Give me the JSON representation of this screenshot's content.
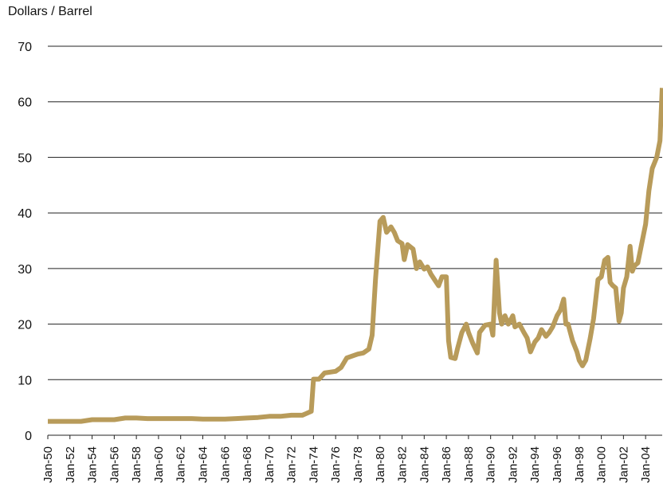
{
  "chart_data": {
    "type": "line",
    "ylabel": "Dollars / Barrel",
    "ylim": [
      0,
      70
    ],
    "yticks": [
      "0",
      "10",
      "20",
      "30",
      "40",
      "50",
      "60",
      "70"
    ],
    "grid": true,
    "color": "#B89B5A",
    "xticks": [
      "Jan-50",
      "Jan-52",
      "Jan-54",
      "Jan-56",
      "Jan-58",
      "Jan-60",
      "Jan-62",
      "Jan-64",
      "Jan-66",
      "Jan-68",
      "Jan-70",
      "Jan-72",
      "Jan-74",
      "Jan-76",
      "Jan-78",
      "Jan-80",
      "Jan-82",
      "Jan-84",
      "Jan-86",
      "Jan-88",
      "Jan-90",
      "Jan-92",
      "Jan-94",
      "Jan-96",
      "Jan-98",
      "Jan-00",
      "Jan-02",
      "Jan-04"
    ],
    "x_start_year": 1950,
    "x_end_year": 2005.5,
    "series": [
      {
        "name": "",
        "x": [
          1950,
          1952,
          1953,
          1954,
          1955,
          1956,
          1957,
          1958,
          1959,
          1960,
          1961,
          1962,
          1963,
          1964,
          1965,
          1966,
          1967,
          1968,
          1969,
          1970,
          1971,
          1972,
          1973,
          1973.8,
          1974,
          1974.5,
          1975,
          1976,
          1976.5,
          1977,
          1978,
          1978.5,
          1979,
          1979.3,
          1979.6,
          1980,
          1980.3,
          1980.6,
          1981,
          1981.3,
          1981.6,
          1982,
          1982.2,
          1982.5,
          1983,
          1983.3,
          1983.6,
          1984,
          1984.3,
          1984.6,
          1985,
          1985.3,
          1985.6,
          1986,
          1986.2,
          1986.4,
          1986.8,
          1987,
          1987.4,
          1987.8,
          1988,
          1988.4,
          1988.8,
          1989,
          1989.5,
          1990,
          1990.2,
          1990.5,
          1990.8,
          1991,
          1991.3,
          1991.6,
          1992,
          1992.2,
          1992.6,
          1993,
          1993.3,
          1993.6,
          1994,
          1994.3,
          1994.6,
          1995,
          1995.3,
          1995.6,
          1996,
          1996.3,
          1996.6,
          1996.8,
          1997,
          1997.4,
          1997.8,
          1998,
          1998.3,
          1998.6,
          1999,
          1999.3,
          1999.7,
          2000,
          2000.3,
          2000.6,
          2000.8,
          2001,
          2001.3,
          2001.6,
          2001.8,
          2002,
          2002.3,
          2002.6,
          2002.8,
          2003,
          2003.3,
          2003.6,
          2004,
          2004.3,
          2004.6,
          2005,
          2005.3,
          2005.5
        ],
        "y": [
          2.5,
          2.5,
          2.5,
          2.8,
          2.8,
          2.8,
          3.1,
          3.1,
          3.0,
          3.0,
          3.0,
          3.0,
          3.0,
          2.9,
          2.9,
          2.9,
          3.0,
          3.1,
          3.2,
          3.4,
          3.4,
          3.6,
          3.6,
          4.3,
          10.1,
          10.1,
          11.2,
          11.5,
          12.2,
          13.9,
          14.6,
          14.8,
          15.5,
          18,
          28,
          38.5,
          39.2,
          36.5,
          37.5,
          36.5,
          35,
          34.5,
          31.6,
          34.3,
          33.5,
          30.0,
          31.2,
          29.9,
          30.3,
          29.0,
          27.8,
          26.9,
          28.5,
          28.5,
          17,
          14,
          13.8,
          15.5,
          18.5,
          20.0,
          18.5,
          16.5,
          14.8,
          18.5,
          19.8,
          20.0,
          18.0,
          31.5,
          22.0,
          20.0,
          21.5,
          20.0,
          21.5,
          19.5,
          20.0,
          18.5,
          17.5,
          15,
          16.8,
          17.5,
          19.0,
          17.8,
          18.5,
          19.5,
          21.5,
          22.5,
          24.5,
          20.0,
          20.0,
          17.0,
          15.0,
          13.5,
          12.5,
          13.5,
          17.5,
          21.0,
          28.0,
          28.5,
          31.5,
          32.0,
          27.5,
          27,
          26.5,
          20.5,
          22,
          26.5,
          28.5,
          34.0,
          29.5,
          30.5,
          31,
          34,
          38,
          44,
          48,
          50,
          53,
          62.5
        ]
      }
    ]
  }
}
